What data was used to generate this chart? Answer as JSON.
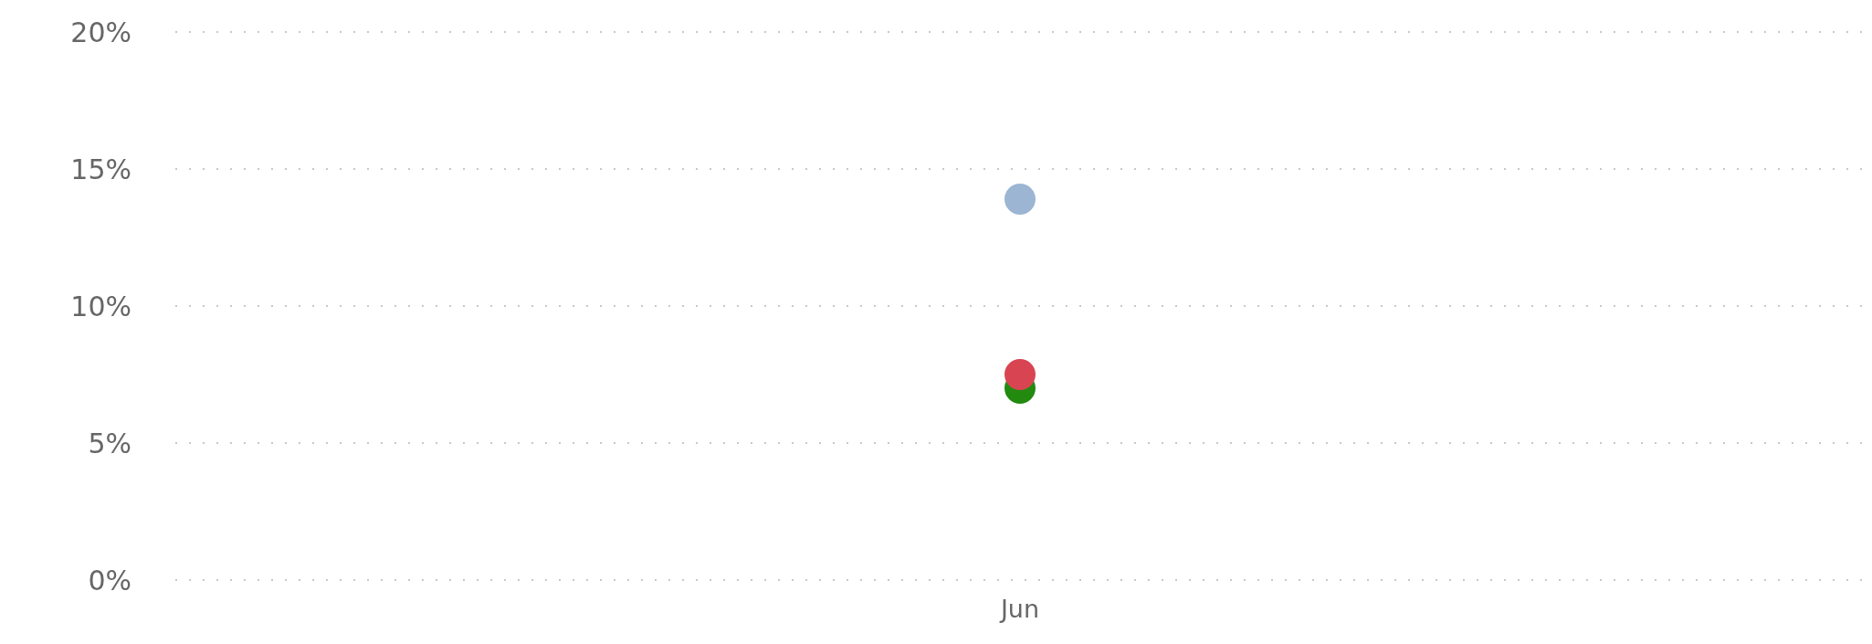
{
  "chart_data": {
    "type": "scatter",
    "categories": [
      "Jun"
    ],
    "series": [
      {
        "color": "#9bb5d3",
        "values": [
          13.9
        ]
      },
      {
        "color": "#238a10",
        "values": [
          7.0
        ]
      },
      {
        "color": "#d94452",
        "values": [
          7.5
        ]
      }
    ],
    "ylim": [
      0,
      20
    ],
    "yticks": [
      {
        "value": 0,
        "label": "0%"
      },
      {
        "value": 5,
        "label": "5%"
      },
      {
        "value": 10,
        "label": "10%"
      },
      {
        "value": 15,
        "label": "15%"
      },
      {
        "value": 20,
        "label": "20%"
      }
    ],
    "grid": "y",
    "marker": "circle"
  }
}
